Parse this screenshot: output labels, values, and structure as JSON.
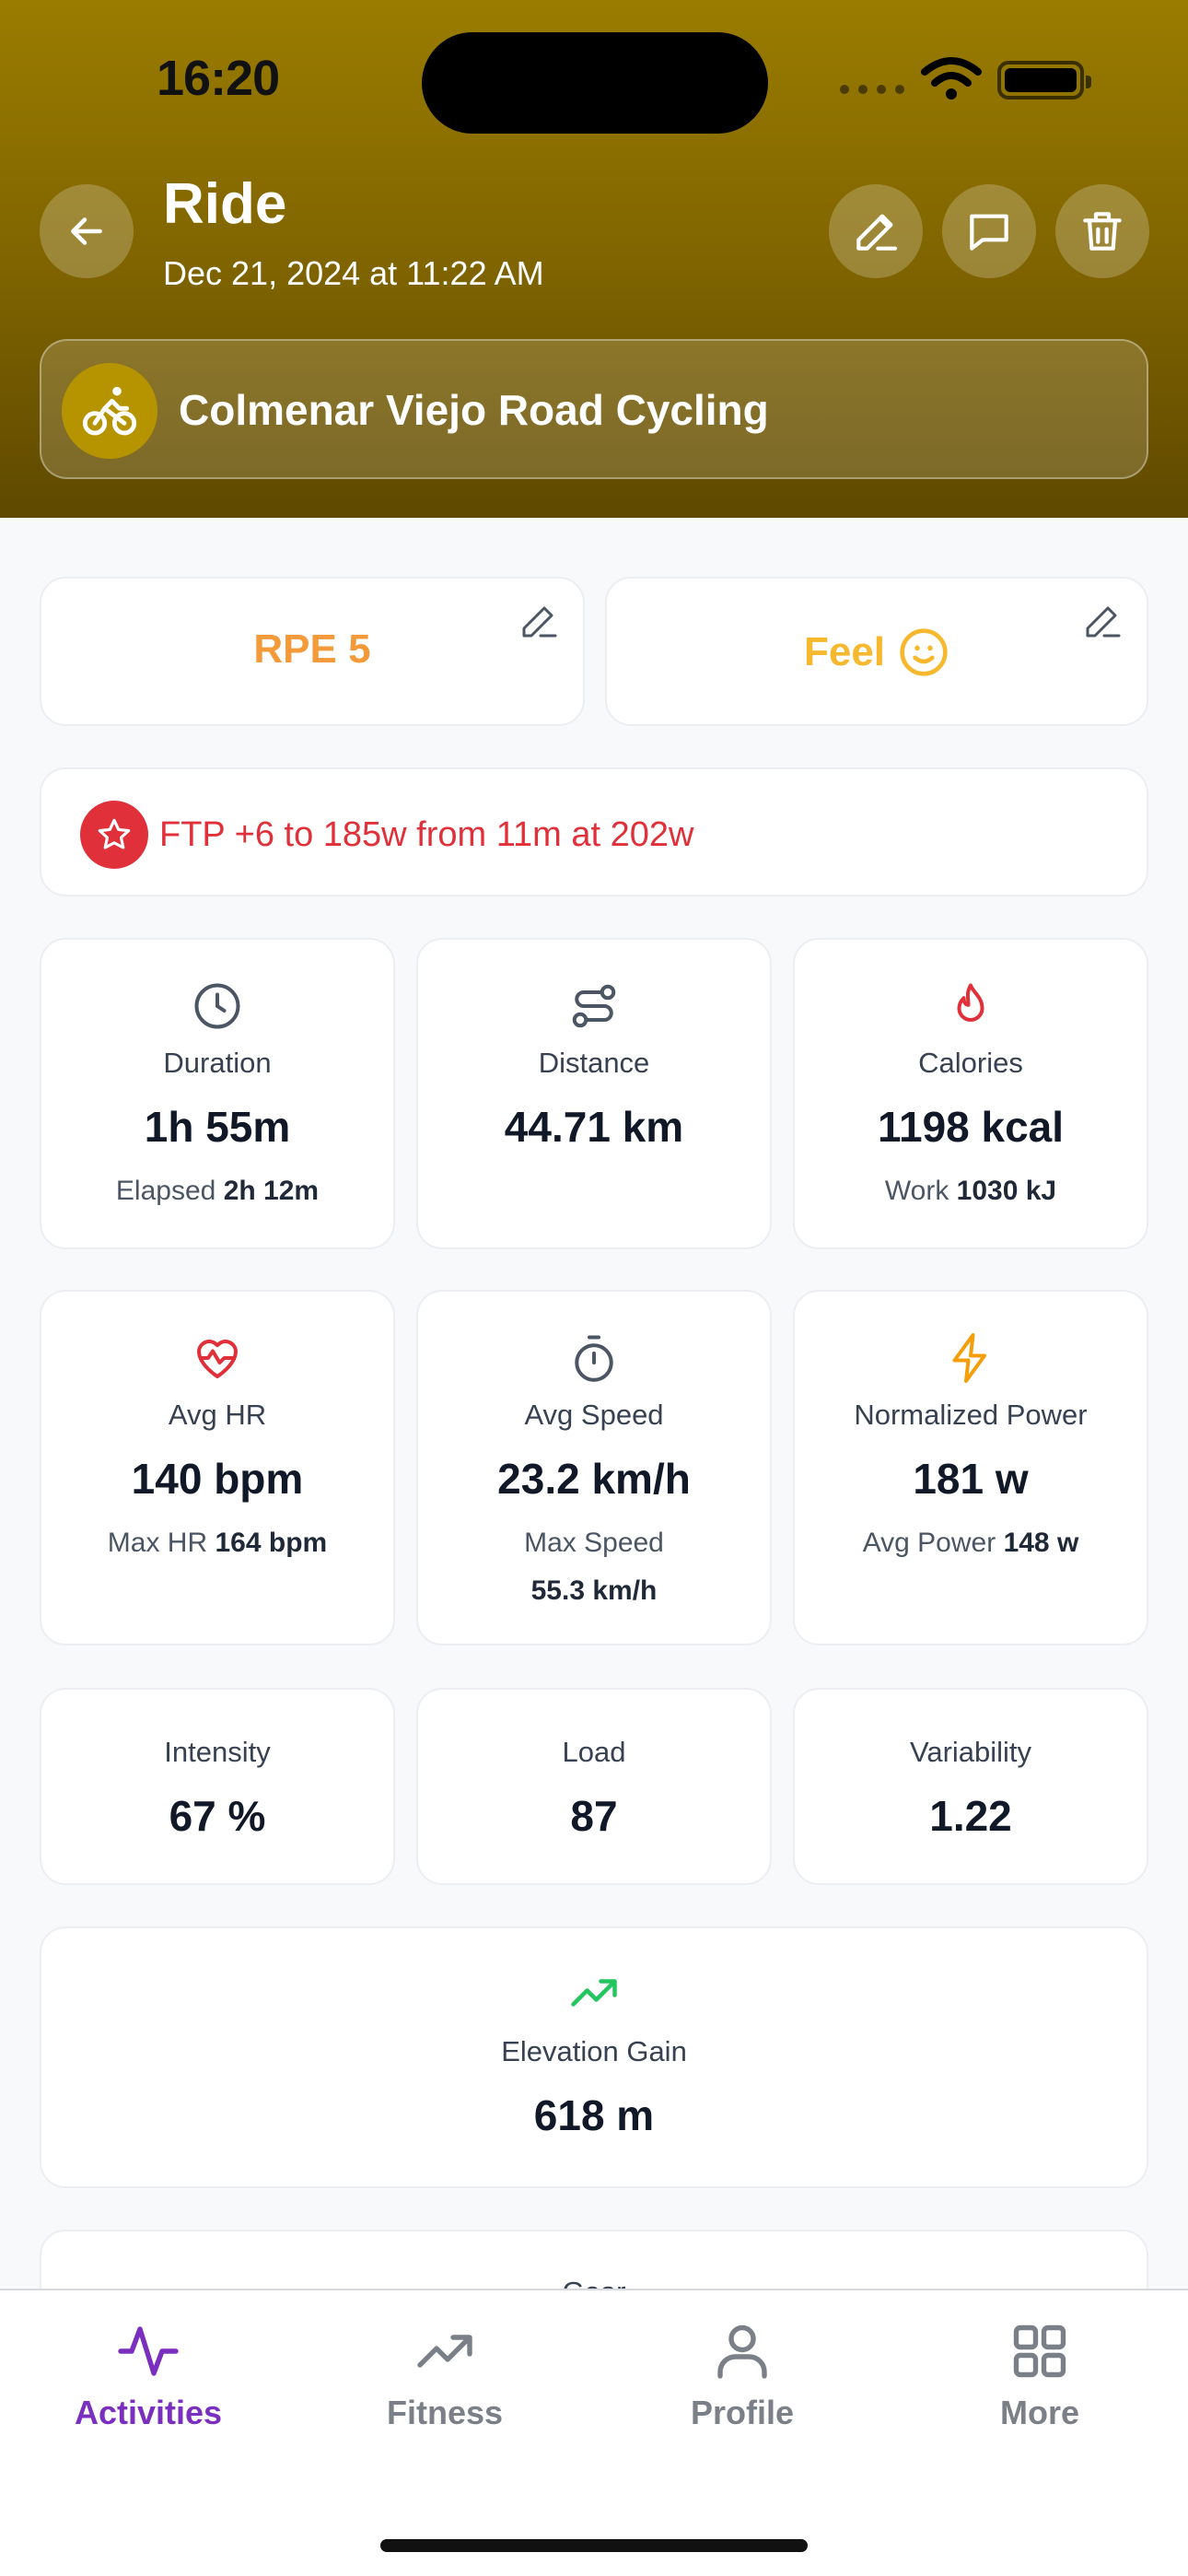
{
  "status_bar": {
    "time": "16:20"
  },
  "header": {
    "title": "Ride",
    "date": "Dec 21, 2024 at 11:22 AM",
    "route_name": "Colmenar Viejo Road Cycling"
  },
  "rpe": {
    "label": "RPE 5",
    "color": "#f39a3a"
  },
  "feel": {
    "label": "Feel",
    "color": "#f5b82e"
  },
  "ftp_banner": {
    "text": "FTP +6 to 185w from 11m at 202w",
    "color": "#e0303a"
  },
  "stats": {
    "duration": {
      "label": "Duration",
      "value": "1h 55m",
      "sub_label": "Elapsed",
      "sub_value": "2h 12m"
    },
    "distance": {
      "label": "Distance",
      "value": "44.71 km"
    },
    "calories": {
      "label": "Calories",
      "value": "1198 kcal",
      "sub_label": "Work",
      "sub_value": "1030 kJ"
    },
    "avg_hr": {
      "label": "Avg HR",
      "value": "140 bpm",
      "sub_label": "Max HR",
      "sub_value": "164 bpm"
    },
    "avg_speed": {
      "label": "Avg Speed",
      "value": "23.2 km/h",
      "sub_label": "Max Speed",
      "sub_value": "55.3 km/h"
    },
    "norm_power": {
      "label": "Normalized Power",
      "value": "181 w",
      "sub_label": "Avg Power",
      "sub_value": "148 w"
    },
    "intensity": {
      "label": "Intensity",
      "value": "67 %"
    },
    "load": {
      "label": "Load",
      "value": "87"
    },
    "variability": {
      "label": "Variability",
      "value": "1.22"
    },
    "elevation": {
      "label": "Elevation Gain",
      "value": "618 m"
    },
    "gear": {
      "label": "Gear"
    }
  },
  "nav": {
    "items": [
      {
        "label": "Activities",
        "icon": "activity-icon",
        "active": true
      },
      {
        "label": "Fitness",
        "icon": "trending-icon",
        "active": false
      },
      {
        "label": "Profile",
        "icon": "user-icon",
        "active": false
      },
      {
        "label": "More",
        "icon": "grid-icon",
        "active": false
      }
    ],
    "active_color": "#7b2fbf"
  }
}
